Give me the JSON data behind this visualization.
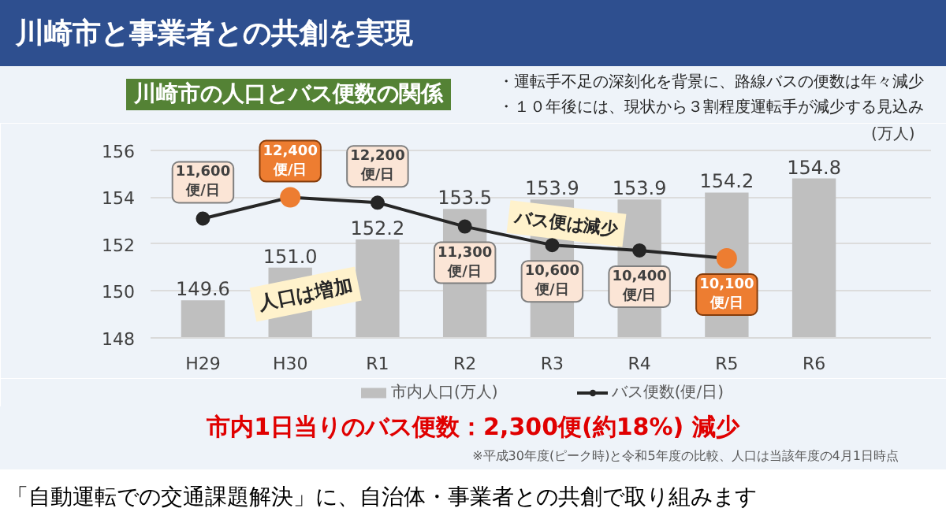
{
  "chart_data": {
    "type": "bar",
    "title": "川崎市と事業者との共創を実現",
    "subtitle": "川崎市の人口とバス便数の関係",
    "categories": [
      "H29",
      "H30",
      "R1",
      "R2",
      "R3",
      "R4",
      "R5",
      "R6"
    ],
    "series": [
      {
        "name": "市内人口(万人)",
        "color": "#bfbfbf",
        "values": [
          149.6,
          151.0,
          152.2,
          153.5,
          153.9,
          153.9,
          154.2,
          154.8
        ],
        "value_labels": [
          "149.6",
          "151.0",
          "152.2",
          "153.5",
          "153.9",
          "153.9",
          "154.2",
          "154.8"
        ]
      },
      {
        "name": "バス便数(便/日)",
        "type": "line",
        "axis": "y2",
        "color": "#262626",
        "colors": [
          "#262626",
          "#ed7d31",
          "#262626",
          "#262626",
          "#262626",
          "#262626",
          "#ed7d31",
          null
        ],
        "values": [
          11600,
          12400,
          12200,
          11300,
          10600,
          10400,
          10100,
          null
        ],
        "value_labels": [
          "11,600\n便/日",
          "12,400\n便/日",
          "12,200\n便/日",
          "11,300\n便/日",
          "10,600\n便/日",
          "10,400\n便/日",
          "10,100\n便/日",
          null
        ]
      }
    ],
    "ylim": [
      148,
      157
    ],
    "yticks": [
      148,
      150,
      152,
      154,
      156
    ],
    "y2lim": [
      7100,
      15060
    ],
    "grid": "y",
    "legend": "bottom",
    "marker": "circle",
    "line_style": "solid",
    "annotations": [
      "・運転手不足の深刻化を背景に、路線バスの便数は年々減少",
      "・１０年後には、現状から３割程度運転手が減少する見込み",
      "人口は増加",
      "バス便は減少",
      "(万人)",
      "市内1日当りのバス便数：2,300便(約18%) 減少",
      "※平成30年度(ピーク時)と令和5年度の比較、人口は当該年度の4月1日時点",
      "「自動運転での交通課題解決」に、自治体・事業者との共創で取り組みます"
    ]
  }
}
